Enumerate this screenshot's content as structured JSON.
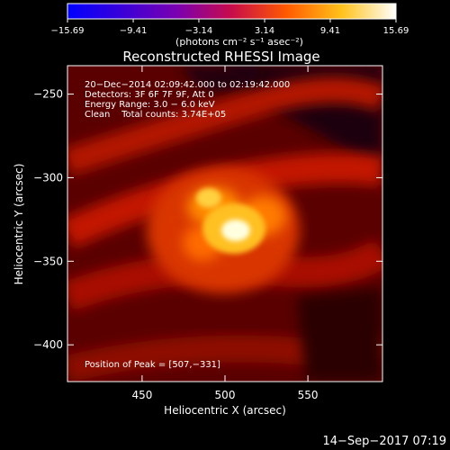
{
  "colorbar": {
    "ticks": [
      "−15.69",
      "−9.41",
      "−3.14",
      "3.14",
      "9.41",
      "15.69"
    ],
    "units": "(photons cm⁻² s⁻¹ asec⁻²)",
    "range": [
      -15.69,
      15.69
    ],
    "colormap": [
      "#0000ff",
      "#3a00d8",
      "#7a00b0",
      "#c80c4a",
      "#ff5a00",
      "#ffc21a",
      "#ffffff"
    ]
  },
  "chart_data": {
    "type": "heatmap",
    "title": "Reconstructed RHESSI Image",
    "xlabel": "Heliocentric X (arcsec)",
    "ylabel": "Heliocentric Y (arcsec)",
    "xlim": [
      405,
      595
    ],
    "ylim": [
      -422,
      -233
    ],
    "xticks": [
      450,
      500,
      550
    ],
    "yticks": [
      -250,
      -300,
      -350,
      -400
    ],
    "peak": [
      507,
      -331
    ],
    "info_lines": [
      "20−Dec−2014 02:09:42.000 to 02:19:42.000",
      "Detectors: 3F 6F 7F 9F, Att 0",
      "Energy Range: 3.0 − 6.0 keV",
      "Clean    Total counts: 3.74E+05"
    ],
    "peak_label": "Position of Peak = [507,−331]"
  },
  "footer": {
    "timestamp": "14−Sep−2017 07:19"
  }
}
